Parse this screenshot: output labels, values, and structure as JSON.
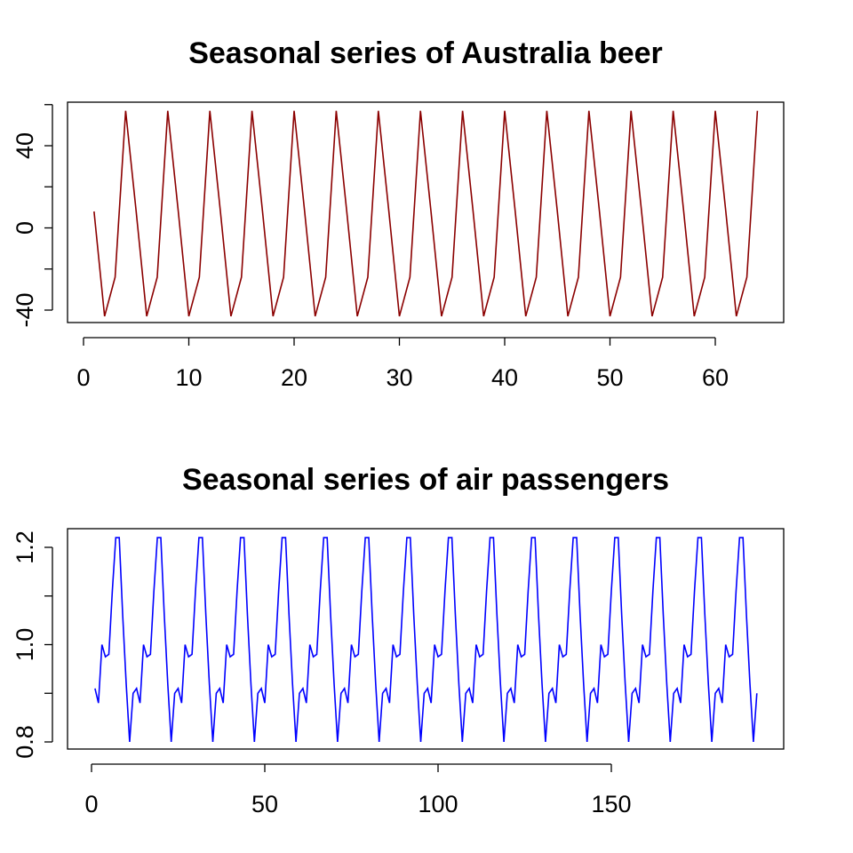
{
  "chart_data": [
    {
      "type": "line",
      "title": "Seasonal series of Australia beer",
      "xlabel": "",
      "ylabel": "",
      "xlim": [
        1,
        64
      ],
      "ylim": [
        -43,
        57
      ],
      "x_ticks": [
        0,
        10,
        20,
        30,
        40,
        50,
        60
      ],
      "y_ticks": [
        -40,
        0,
        40
      ],
      "y_minor_ticks": [
        -40,
        -20,
        0,
        20,
        40,
        60
      ],
      "grid": false,
      "color": "#8B0000",
      "period": 4,
      "cycle_values": [
        8,
        -43,
        -24,
        57
      ],
      "series": [
        {
          "x_start": 1,
          "values": [
            8,
            -43,
            -24,
            57,
            8,
            -43,
            -24,
            57,
            8,
            -43,
            -24,
            57,
            8,
            -43,
            -24,
            57,
            8,
            -43,
            -24,
            57,
            8,
            -43,
            -24,
            57,
            8,
            -43,
            -24,
            57,
            8,
            -43,
            -24,
            57,
            8,
            -43,
            -24,
            57,
            8,
            -43,
            -24,
            57,
            8,
            -43,
            -24,
            57,
            8,
            -43,
            -24,
            57,
            8,
            -43,
            -24,
            57,
            8,
            -43,
            -24,
            57,
            8,
            -43,
            -24,
            57,
            8,
            -43,
            -24,
            57
          ]
        }
      ]
    },
    {
      "type": "line",
      "title": "Seasonal series of air passengers",
      "xlabel": "",
      "ylabel": "",
      "xlim": [
        1,
        192
      ],
      "ylim": [
        0.8,
        1.22
      ],
      "x_ticks": [
        0,
        50,
        100,
        150
      ],
      "y_ticks": [
        0.8,
        1.0,
        1.2
      ],
      "y_tick_labels": [
        "0.8",
        "1.0",
        "1.2"
      ],
      "y_minor_ticks": [
        0.8,
        0.9,
        1.0,
        1.1,
        1.2
      ],
      "grid": false,
      "color": "#0000FF",
      "period": 12,
      "cycle_values": [
        0.91,
        0.88,
        1.0,
        0.975,
        0.98,
        1.11,
        1.22,
        1.22,
        1.06,
        0.92,
        0.8,
        0.9
      ],
      "series": [
        {
          "x_start": 1,
          "values": [
            0.91,
            0.88,
            1.0,
            0.975,
            0.98,
            1.11,
            1.22,
            1.22,
            1.06,
            0.92,
            0.8,
            0.9,
            0.91,
            0.88,
            1.0,
            0.975,
            0.98,
            1.11,
            1.22,
            1.22,
            1.06,
            0.92,
            0.8,
            0.9,
            0.91,
            0.88,
            1.0,
            0.975,
            0.98,
            1.11,
            1.22,
            1.22,
            1.06,
            0.92,
            0.8,
            0.9,
            0.91,
            0.88,
            1.0,
            0.975,
            0.98,
            1.11,
            1.22,
            1.22,
            1.06,
            0.92,
            0.8,
            0.9,
            0.91,
            0.88,
            1.0,
            0.975,
            0.98,
            1.11,
            1.22,
            1.22,
            1.06,
            0.92,
            0.8,
            0.9,
            0.91,
            0.88,
            1.0,
            0.975,
            0.98,
            1.11,
            1.22,
            1.22,
            1.06,
            0.92,
            0.8,
            0.9,
            0.91,
            0.88,
            1.0,
            0.975,
            0.98,
            1.11,
            1.22,
            1.22,
            1.06,
            0.92,
            0.8,
            0.9,
            0.91,
            0.88,
            1.0,
            0.975,
            0.98,
            1.11,
            1.22,
            1.22,
            1.06,
            0.92,
            0.8,
            0.9,
            0.91,
            0.88,
            1.0,
            0.975,
            0.98,
            1.11,
            1.22,
            1.22,
            1.06,
            0.92,
            0.8,
            0.9,
            0.91,
            0.88,
            1.0,
            0.975,
            0.98,
            1.11,
            1.22,
            1.22,
            1.06,
            0.92,
            0.8,
            0.9,
            0.91,
            0.88,
            1.0,
            0.975,
            0.98,
            1.11,
            1.22,
            1.22,
            1.06,
            0.92,
            0.8,
            0.9,
            0.91,
            0.88,
            1.0,
            0.975,
            0.98,
            1.11,
            1.22,
            1.22,
            1.06,
            0.92,
            0.8,
            0.9,
            0.91,
            0.88,
            1.0,
            0.975,
            0.98,
            1.11,
            1.22,
            1.22,
            1.06,
            0.92,
            0.8,
            0.9,
            0.91,
            0.88,
            1.0,
            0.975,
            0.98,
            1.11,
            1.22,
            1.22,
            1.06,
            0.92,
            0.8,
            0.9,
            0.91,
            0.88,
            1.0,
            0.975,
            0.98,
            1.11,
            1.22,
            1.22,
            1.06,
            0.92,
            0.8,
            0.9,
            0.91,
            0.88,
            1.0,
            0.975,
            0.98,
            1.11,
            1.22,
            1.22,
            1.06,
            0.92,
            0.8,
            0.9
          ]
        }
      ]
    }
  ]
}
